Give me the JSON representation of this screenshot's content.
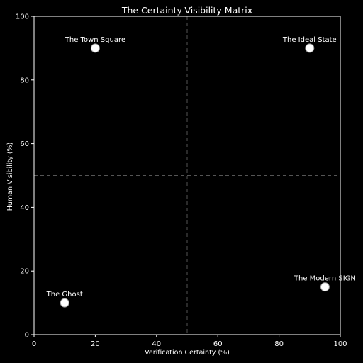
{
  "chart_data": {
    "type": "scatter",
    "title": "The Certainty-Visibility Matrix",
    "xlabel": "Verification Certainty (%)",
    "ylabel": "Human Visibility (%)",
    "xlim": [
      0,
      100
    ],
    "ylim": [
      0,
      100
    ],
    "xticks": [
      0,
      20,
      40,
      60,
      80,
      100
    ],
    "yticks": [
      0,
      20,
      40,
      60,
      80,
      100
    ],
    "grid": false,
    "reference_lines": {
      "x": 50,
      "y": 50,
      "style": "dashed"
    },
    "points": [
      {
        "label": "The Town Square",
        "x": 20,
        "y": 90
      },
      {
        "label": "The Ideal State",
        "x": 90,
        "y": 90
      },
      {
        "label": "The Ghost",
        "x": 10,
        "y": 10
      },
      {
        "label": "The Modern SIGN",
        "x": 95,
        "y": 15
      }
    ],
    "colors": {
      "background": "#000000",
      "foreground": "#ffffff",
      "reference_line": "#555555",
      "marker_fill": "#ffffff"
    }
  }
}
